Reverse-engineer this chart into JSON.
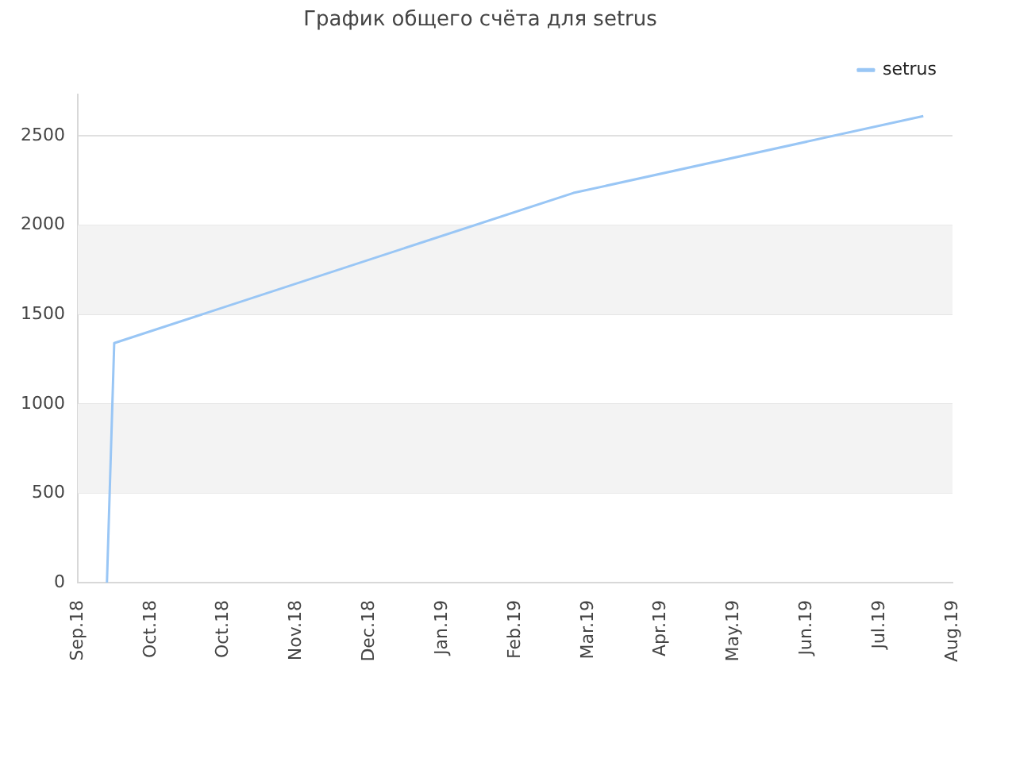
{
  "chart_data": {
    "type": "line",
    "title": "График общего счёта для setrus",
    "categories": [
      "Sep.18",
      null,
      null,
      null,
      null,
      null,
      null,
      null,
      null,
      null,
      "Oct.18",
      null,
      null,
      null,
      null,
      null,
      null,
      null,
      null,
      null,
      "Oct.18",
      null,
      null,
      null,
      null,
      null,
      null,
      null,
      null,
      null,
      "Nov.18",
      null,
      null,
      null,
      null,
      null,
      null,
      null,
      null,
      null,
      "Dec.18",
      null,
      null,
      null,
      null,
      null,
      null,
      null,
      null,
      null,
      "Jan.19",
      null,
      null,
      null,
      null,
      null,
      null,
      null,
      null,
      null,
      "Feb.19",
      null,
      null,
      null,
      null,
      null,
      null,
      null,
      null,
      null,
      "Mar.19",
      null,
      null,
      null,
      null,
      null,
      null,
      null,
      null,
      null,
      "Apr.19",
      null,
      null,
      null,
      null,
      null,
      null,
      null,
      null,
      null,
      "May.19",
      null,
      null,
      null,
      null,
      null,
      null,
      null,
      null,
      null,
      "Jun.19",
      null,
      null,
      null,
      null,
      null,
      null,
      null,
      null,
      null,
      "Jul.19",
      null,
      null,
      null,
      null,
      null,
      null,
      null,
      null,
      null,
      "Aug.19"
    ],
    "ylim": [
      0,
      2730
    ],
    "yticks": [
      0,
      500,
      1000,
      1500,
      2000,
      2500
    ],
    "grid": "y",
    "legend": "top right",
    "marker": "none",
    "line_style": "solid",
    "series": [
      {
        "name": "setrus",
        "color": "#99c6f5",
        "values": [
          null,
          null,
          null,
          null,
          0,
          1340,
          null,
          null,
          null,
          null,
          null,
          null,
          null,
          null,
          null,
          null,
          null,
          null,
          null,
          null,
          null,
          null,
          null,
          null,
          null,
          null,
          null,
          null,
          null,
          null,
          null,
          null,
          null,
          null,
          null,
          null,
          null,
          null,
          null,
          null,
          null,
          null,
          null,
          null,
          null,
          null,
          null,
          null,
          null,
          null,
          null,
          null,
          null,
          null,
          null,
          null,
          null,
          null,
          null,
          null,
          null,
          null,
          null,
          null,
          null,
          null,
          null,
          null,
          2180,
          null,
          null,
          null,
          null,
          null,
          null,
          null,
          null,
          null,
          null,
          null,
          null,
          null,
          null,
          null,
          null,
          null,
          null,
          null,
          null,
          null,
          null,
          null,
          null,
          null,
          null,
          null,
          null,
          null,
          null,
          null,
          null,
          null,
          null,
          null,
          null,
          null,
          null,
          null,
          null,
          null,
          null,
          null,
          null,
          null,
          null,
          null,
          2610,
          null,
          null,
          null,
          null
        ]
      }
    ]
  }
}
